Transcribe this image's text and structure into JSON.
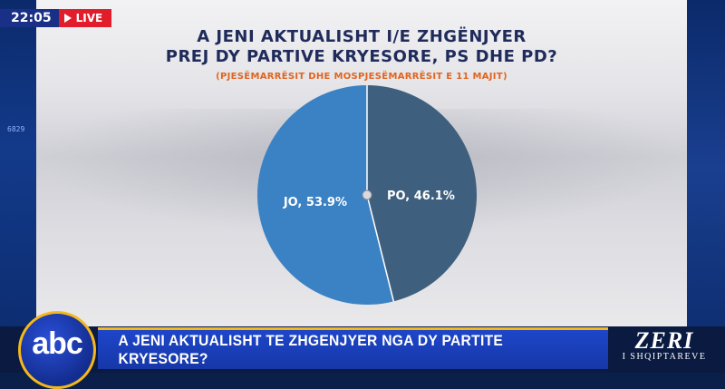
{
  "broadcast": {
    "time": "22:05",
    "live_label": "LIVE",
    "ticker_value": "6829",
    "headline": "A JENI AKTUALISHT TE ZHGENJYER NGA DY PARTITE KRYESORE?",
    "channel_logo": "abc",
    "show_title": "ZERI",
    "show_subtitle": "I SHQIPTAREVE"
  },
  "chart_data": {
    "type": "pie",
    "title_lines": [
      "A JENI AKTUALISHT I/E ZHGËNJYER",
      "PREJ DY PARTIVE KRYESORE, PS DHE PD?"
    ],
    "subtitle": "(PJESËMARRËSIT DHE MOSPJESËMARRËSIT E 11 MAJIT)",
    "slices": [
      {
        "label": "PO",
        "value": 46.1,
        "color": "#3f5f7f"
      },
      {
        "label": "JO",
        "value": 53.9,
        "color": "#3b82c4"
      }
    ],
    "data_labels": [
      "PO, 46.1%",
      "JO, 53.9%"
    ],
    "legend": "none",
    "colors": {
      "title": "#1f2b5a",
      "subtitle": "#e0641e",
      "accent": "#f5b81c",
      "headline_bar": "#1d46c9"
    }
  }
}
